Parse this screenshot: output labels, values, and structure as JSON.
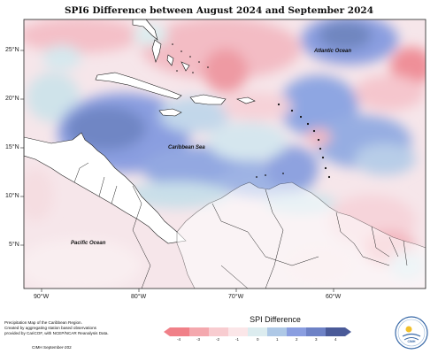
{
  "title": "SPI6 Difference between August 2024 and September 2024",
  "lat_labels": [
    "25°N",
    "20°N",
    "15°N",
    "10°N",
    "5°N"
  ],
  "lon_labels": [
    "90°W",
    "80°W",
    "70°W",
    "60°W"
  ],
  "places": {
    "atlantic": "Atlantic Ocean",
    "caribbean": "Caribbean Sea",
    "pacific": "Pacific Ocean"
  },
  "credit_lines": [
    "Precipitation Map of the Caribbean Region.",
    "Created by aggregating station based observations",
    "provided by CariCOF, with NCEP/NCAR Reanalysis Data."
  ],
  "credit_date": "CIMH September-202",
  "legend": {
    "title": "SPI Difference",
    "ticks": [
      "-4",
      "-3",
      "-2",
      "-1",
      "0",
      "1",
      "2",
      "3",
      "4"
    ],
    "colors": [
      "#f08088",
      "#f4a8ae",
      "#f8ccd0",
      "#fbe6e8",
      "#dcecef",
      "#aec8e6",
      "#8a9ee0",
      "#6e82c6",
      "#4a5a98"
    ]
  },
  "logo_text": "CIMH"
}
